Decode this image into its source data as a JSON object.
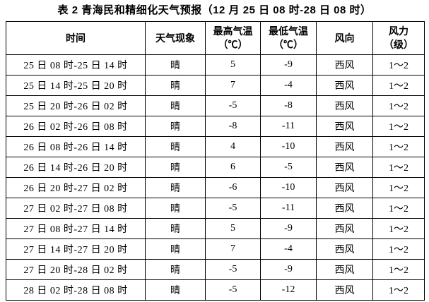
{
  "title": "表 2 青海民和精细化天气预报（12 月 25 日 08 时-28 日 08 时）",
  "table": {
    "columns": [
      {
        "label": "时间"
      },
      {
        "label": "天气现象"
      },
      {
        "label": "最高气温",
        "sub": "（℃）"
      },
      {
        "label": "最低气温",
        "sub": "（℃）"
      },
      {
        "label": "风向"
      },
      {
        "label": "风力",
        "sub": "（级）"
      }
    ],
    "rows": [
      [
        "25 日 08 时-25 日 14 时",
        "晴",
        "5",
        "-9",
        "西风",
        "1～2"
      ],
      [
        "25 日 14 时-25 日 20 时",
        "晴",
        "7",
        "-4",
        "西风",
        "1～2"
      ],
      [
        "25 日 20 时-26 日 02 时",
        "晴",
        "-5",
        "-8",
        "西风",
        "1～2"
      ],
      [
        "26 日 02 时-26 日 08 时",
        "晴",
        "-8",
        "-11",
        "西风",
        "1～2"
      ],
      [
        "26 日 08 时-26 日 14 时",
        "晴",
        "4",
        "-10",
        "西风",
        "1～2"
      ],
      [
        "26 日 14 时-26 日 20 时",
        "晴",
        "6",
        "-5",
        "西风",
        "1～2"
      ],
      [
        "26 日 20 时-27 日 02 时",
        "晴",
        "-6",
        "-10",
        "西风",
        "1～2"
      ],
      [
        "27 日 02 时-27 日 08 时",
        "晴",
        "-5",
        "-11",
        "西风",
        "1～2"
      ],
      [
        "27 日 08 时-27 日 14 时",
        "晴",
        "5",
        "-9",
        "西风",
        "1～2"
      ],
      [
        "27 日 14 时-27 日 20 时",
        "晴",
        "7",
        "-4",
        "西风",
        "1～2"
      ],
      [
        "27 日 20 时-28 日 02 时",
        "晴",
        "-5",
        "-9",
        "西风",
        "1～2"
      ],
      [
        "28 日 02 时-28 日 08 时",
        "晴",
        "-5",
        "-12",
        "西风",
        "1～2"
      ]
    ]
  },
  "colors": {
    "text": "#000000",
    "background": "#ffffff",
    "grid": "#000000"
  }
}
